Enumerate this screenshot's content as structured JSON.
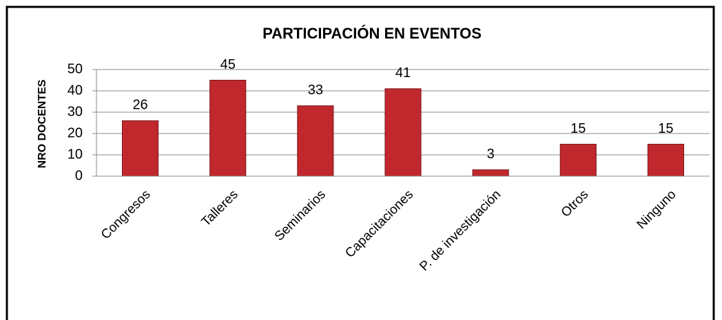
{
  "chart_data": {
    "type": "bar",
    "title": "PARTICIPACIÓN EN EVENTOS",
    "y_label": "NRO DOCENTES",
    "categories": [
      "Congresos",
      "Talleres",
      "Seminarios",
      "Capacitaciones",
      "P. de investigación",
      "Otros",
      "Ninguno"
    ],
    "values": [
      26,
      45,
      33,
      41,
      3,
      15,
      15
    ],
    "color": "#c0282d",
    "ylim": [
      0,
      50
    ],
    "yticks": [
      0,
      10,
      20,
      30,
      40,
      50
    ],
    "grid": true
  }
}
